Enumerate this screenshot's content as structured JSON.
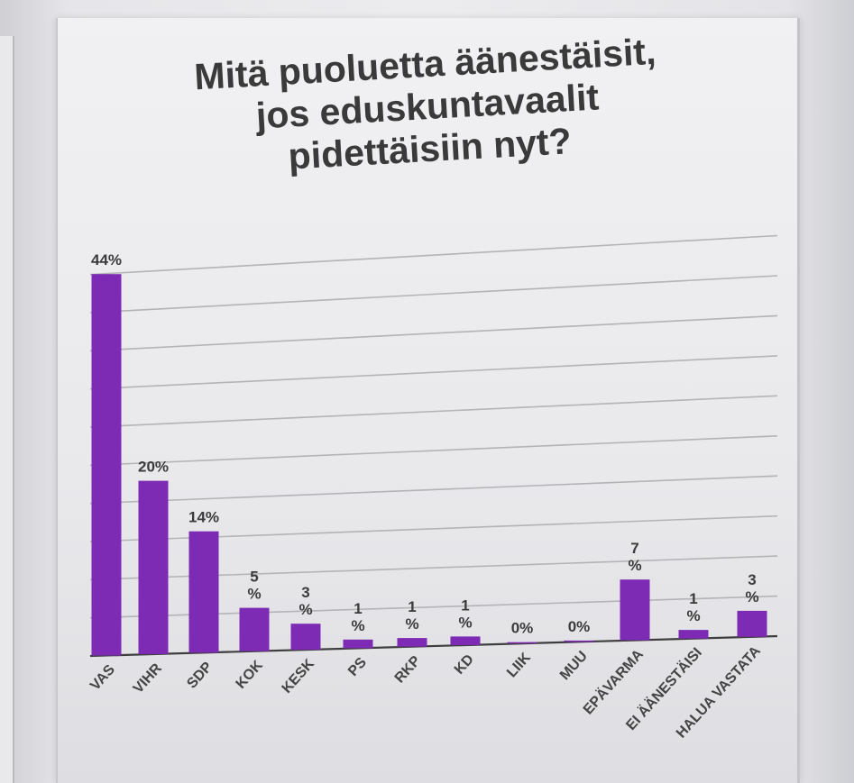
{
  "chart_data": {
    "type": "bar",
    "title": [
      "Mitä puoluetta äänestäisit,",
      "jos eduskuntavaalit",
      "pidettäisiin nyt?"
    ],
    "categories": [
      "VAS",
      "VIHR",
      "SDP",
      "KOK",
      "KESK",
      "PS",
      "RKP",
      "KD",
      "LIIK",
      "MUU",
      "EPÄVARMA",
      "EI ÄÄNESTÄISI",
      "HALUA VASTATA"
    ],
    "values": [
      44,
      20,
      14,
      5,
      3,
      1,
      1,
      1,
      0,
      0,
      7,
      1,
      3
    ],
    "data_labels": [
      [
        "44%"
      ],
      [
        "20%"
      ],
      [
        "14%"
      ],
      [
        "5",
        "%"
      ],
      [
        "3",
        "%"
      ],
      [
        "1",
        "%"
      ],
      [
        "1",
        "%"
      ],
      [
        "1",
        "%"
      ],
      [
        "0%"
      ],
      [
        "0%"
      ],
      [
        "7",
        "%"
      ],
      [
        "1",
        "%"
      ],
      [
        "3",
        "%"
      ]
    ],
    "unit": "%",
    "ylim": [
      0,
      44
    ],
    "grid": true,
    "legend": "none",
    "bar_color": "#7d2ab5"
  }
}
